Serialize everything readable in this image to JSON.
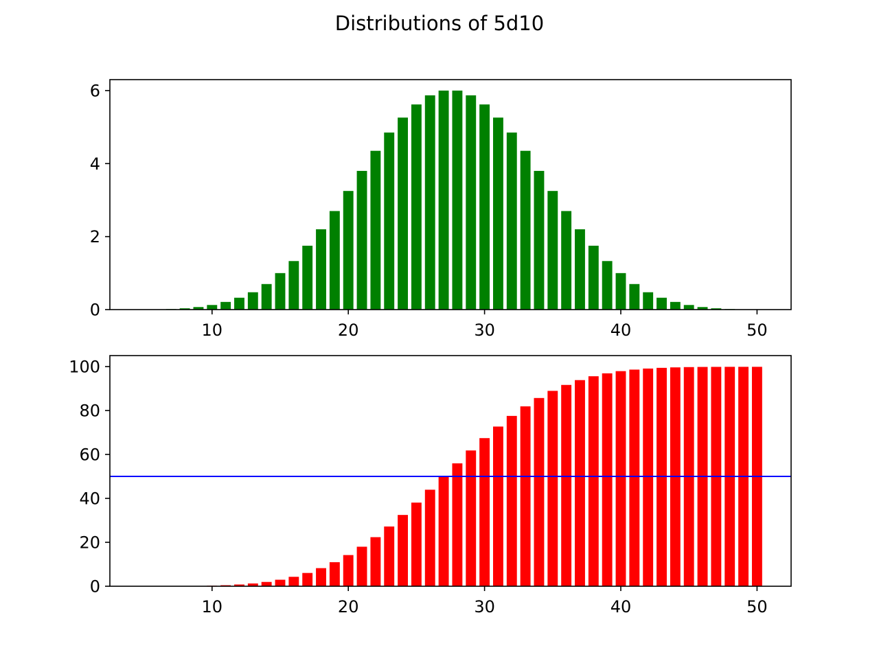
{
  "figure": {
    "title": "Distributions of 5d10"
  },
  "chart_data": [
    {
      "type": "bar",
      "panel": "top",
      "x": [
        5,
        6,
        7,
        8,
        9,
        10,
        11,
        12,
        13,
        14,
        15,
        16,
        17,
        18,
        19,
        20,
        21,
        22,
        23,
        24,
        25,
        26,
        27,
        28,
        29,
        30,
        31,
        32,
        33,
        34,
        35,
        36,
        37,
        38,
        39,
        40,
        41,
        42,
        43,
        44,
        45,
        46,
        47,
        48,
        49,
        50
      ],
      "values": [
        0.001,
        0.005,
        0.015,
        0.035,
        0.07,
        0.126,
        0.21,
        0.325,
        0.475,
        0.7,
        1.0,
        1.33,
        1.75,
        2.2,
        2.7,
        3.25,
        3.8,
        4.35,
        4.85,
        5.26,
        5.62,
        5.87,
        6.0,
        6.0,
        5.87,
        5.62,
        5.26,
        4.85,
        4.35,
        3.8,
        3.25,
        2.7,
        2.2,
        1.75,
        1.33,
        1.0,
        0.7,
        0.475,
        0.325,
        0.21,
        0.126,
        0.07,
        0.035,
        0.015,
        0.005,
        0.001
      ],
      "color": "#008000",
      "xlim": [
        2.5,
        52.5
      ],
      "ylim": [
        0,
        6.3
      ],
      "xticks": [
        10,
        20,
        30,
        40,
        50
      ],
      "yticks": [
        0,
        2,
        4,
        6
      ],
      "xlabel": "",
      "ylabel": "",
      "grid": false
    },
    {
      "type": "bar",
      "panel": "bottom",
      "x": [
        5,
        6,
        7,
        8,
        9,
        10,
        11,
        12,
        13,
        14,
        15,
        16,
        17,
        18,
        19,
        20,
        21,
        22,
        23,
        24,
        25,
        26,
        27,
        28,
        29,
        30,
        31,
        32,
        33,
        34,
        35,
        36,
        37,
        38,
        39,
        40,
        41,
        42,
        43,
        44,
        45,
        46,
        47,
        48,
        49,
        50
      ],
      "values": [
        0.001,
        0.006,
        0.021,
        0.056,
        0.126,
        0.252,
        0.462,
        0.787,
        1.26,
        1.96,
        2.96,
        4.29,
        6.04,
        8.24,
        10.94,
        14.19,
        17.99,
        22.34,
        27.19,
        32.45,
        38.07,
        43.94,
        49.94,
        55.94,
        61.81,
        67.43,
        72.69,
        77.54,
        81.89,
        85.69,
        88.94,
        91.64,
        93.84,
        95.59,
        96.92,
        97.92,
        98.62,
        99.1,
        99.42,
        99.63,
        99.76,
        99.83,
        99.86,
        99.88,
        99.885,
        99.886
      ],
      "color": "#ff0000",
      "reference_line": {
        "y": 50,
        "color": "#0000ff"
      },
      "xlim": [
        2.5,
        52.5
      ],
      "ylim": [
        0,
        105
      ],
      "xticks": [
        10,
        20,
        30,
        40,
        50
      ],
      "yticks": [
        0,
        20,
        40,
        60,
        80,
        100
      ],
      "xlabel": "",
      "ylabel": "",
      "grid": false
    }
  ]
}
